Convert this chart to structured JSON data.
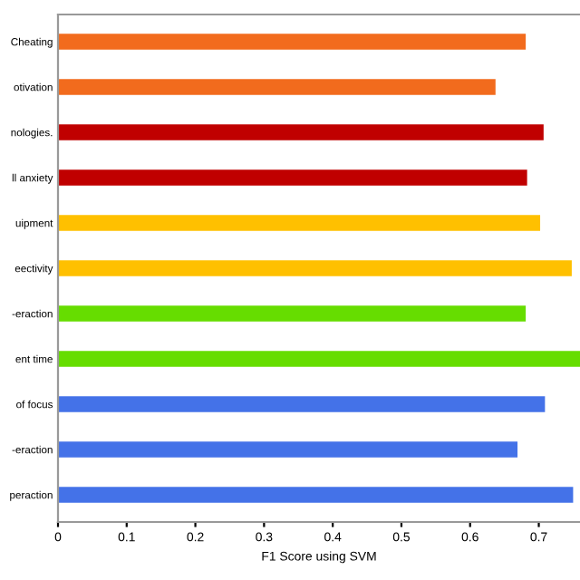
{
  "chart_data": {
    "type": "bar",
    "orientation": "horizontal",
    "xlabel": "F1 Score using SVM",
    "categories": [
      "Cheating",
      "otivation",
      "nologies.",
      "ll anxiety",
      "uipment",
      "eectivity",
      "-eraction",
      "ent time",
      "of focus",
      "-eraction",
      "peraction"
    ],
    "values": [
      0.681,
      0.637,
      0.707,
      0.683,
      0.702,
      0.748,
      0.681,
      0.76,
      0.709,
      0.669,
      0.75
    ],
    "colors": [
      "#f26b1d",
      "#f26b1d",
      "#c00000",
      "#c00000",
      "#ffc000",
      "#ffc000",
      "#66dd00",
      "#66dd00",
      "#4472e8",
      "#4472e8",
      "#4472e8"
    ],
    "xlim": [
      0,
      0.76
    ],
    "xticks": [
      0,
      0.1,
      0.2,
      0.3,
      0.4,
      0.5,
      0.6,
      0.7
    ],
    "grid": false,
    "legend": false
  }
}
